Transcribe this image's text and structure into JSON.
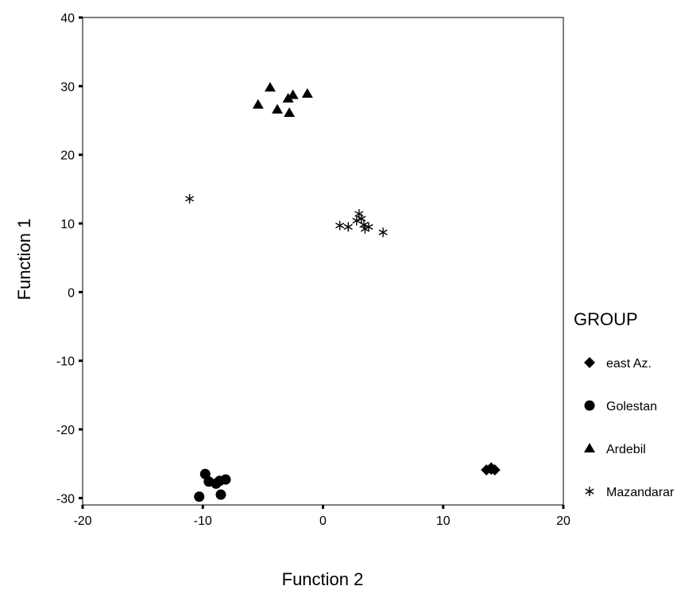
{
  "chart_data": {
    "type": "scatter",
    "xlabel": "Function 2",
    "ylabel": "Function 1",
    "xlim": [
      -20,
      20
    ],
    "ylim": [
      -31,
      40
    ],
    "xticks": [
      -20,
      -10,
      0,
      10,
      20
    ],
    "yticks": [
      -30,
      -20,
      -10,
      0,
      10,
      20,
      30,
      40
    ],
    "grid": false,
    "legend": {
      "title": "GROUP",
      "position": "right"
    },
    "series": [
      {
        "name": "east Az.",
        "marker": "diamond",
        "points": [
          [
            13.6,
            -25.9
          ],
          [
            14.0,
            -25.6
          ],
          [
            14.3,
            -25.9
          ],
          [
            14.0,
            -25.8
          ]
        ]
      },
      {
        "name": "Golestan",
        "marker": "circle",
        "points": [
          [
            -10.3,
            -29.8
          ],
          [
            -9.8,
            -26.5
          ],
          [
            -9.5,
            -27.6
          ],
          [
            -8.9,
            -27.9
          ],
          [
            -8.6,
            -27.5
          ],
          [
            -8.5,
            -29.5
          ],
          [
            -8.1,
            -27.3
          ]
        ]
      },
      {
        "name": "Ardebil",
        "marker": "triangle",
        "points": [
          [
            -5.4,
            27.3
          ],
          [
            -4.4,
            29.8
          ],
          [
            -3.8,
            26.6
          ],
          [
            -2.9,
            28.2
          ],
          [
            -2.8,
            26.1
          ],
          [
            -2.5,
            28.7
          ],
          [
            -1.3,
            28.9
          ]
        ]
      },
      {
        "name": "Mazandaran",
        "legend_text": "Mazandarar",
        "marker": "asterisk",
        "points": [
          [
            -11.1,
            13.6
          ],
          [
            1.4,
            9.7
          ],
          [
            2.1,
            9.5
          ],
          [
            2.8,
            10.4
          ],
          [
            3.0,
            11.4
          ],
          [
            3.2,
            10.7
          ],
          [
            3.4,
            9.8
          ],
          [
            3.5,
            9.2
          ],
          [
            3.8,
            9.5
          ],
          [
            5.0,
            8.7
          ]
        ]
      }
    ]
  }
}
